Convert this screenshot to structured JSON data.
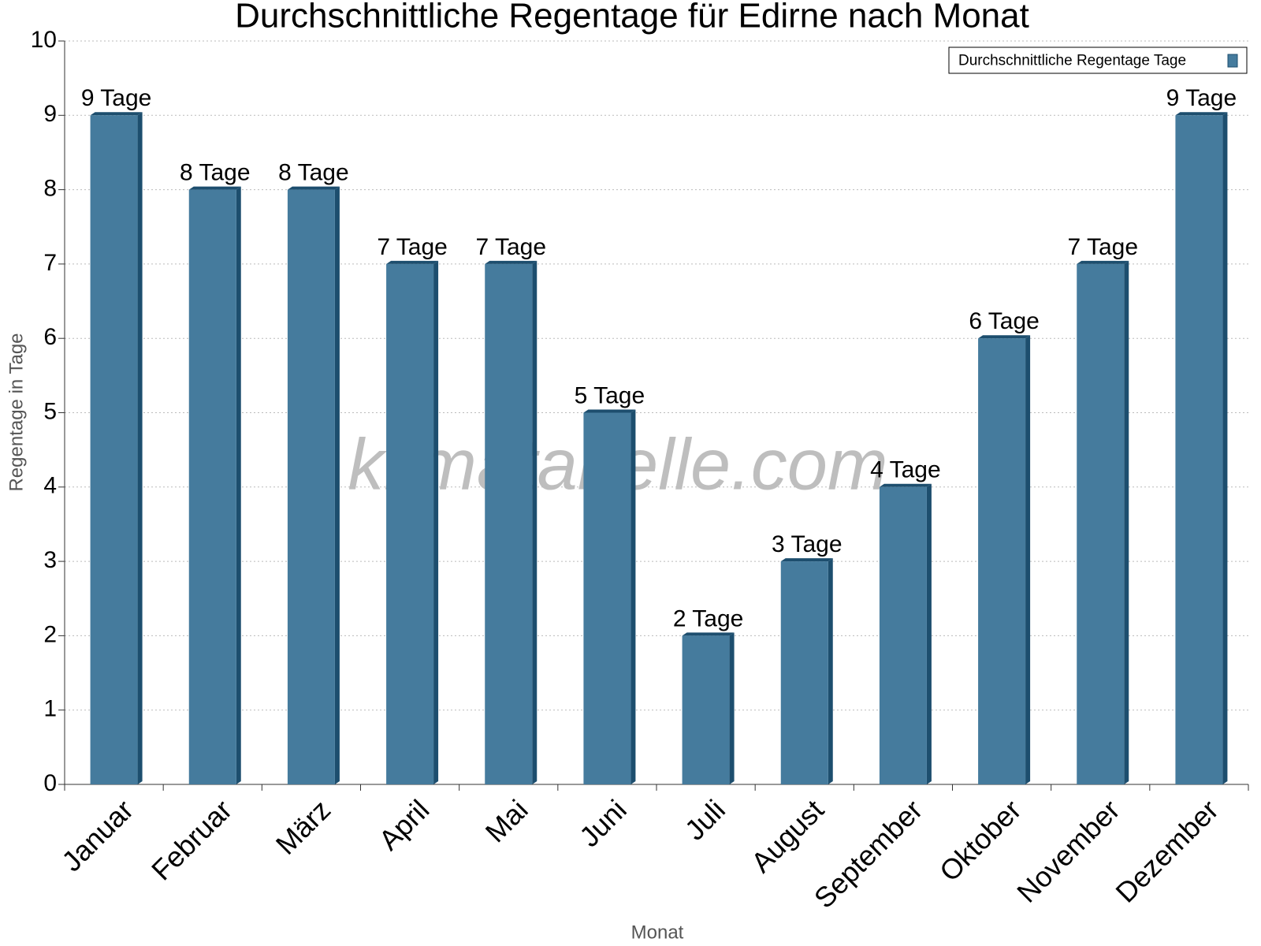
{
  "chart_data": {
    "type": "bar",
    "title": "Durchschnittliche Regentage für Edirne nach Monat",
    "x_label": "Monat",
    "y_label": "Regentage in Tage",
    "watermark": "klimatabelle.com",
    "legend_position": "upper right",
    "grid": true,
    "categories": [
      "Januar",
      "Februar",
      "März",
      "April",
      "Mai",
      "Juni",
      "Juli",
      "August",
      "September",
      "Oktober",
      "November",
      "Dezember"
    ],
    "series": [
      {
        "name": "Durchschnittliche Regentage Tage",
        "color": "#457b9d",
        "values": [
          9,
          8,
          8,
          7,
          7,
          5,
          2,
          3,
          4,
          6,
          7,
          9
        ],
        "value_labels": [
          "9 Tage",
          "8 Tage",
          "8 Tage",
          "7 Tage",
          "7 Tage",
          "5 Tage",
          "2 Tage",
          "3 Tage",
          "4 Tage",
          "6 Tage",
          "7 Tage",
          "9 Tage"
        ]
      }
    ],
    "ylim": [
      0,
      10
    ],
    "yticks": [
      0,
      1,
      2,
      3,
      4,
      5,
      6,
      7,
      8,
      9,
      10
    ]
  }
}
